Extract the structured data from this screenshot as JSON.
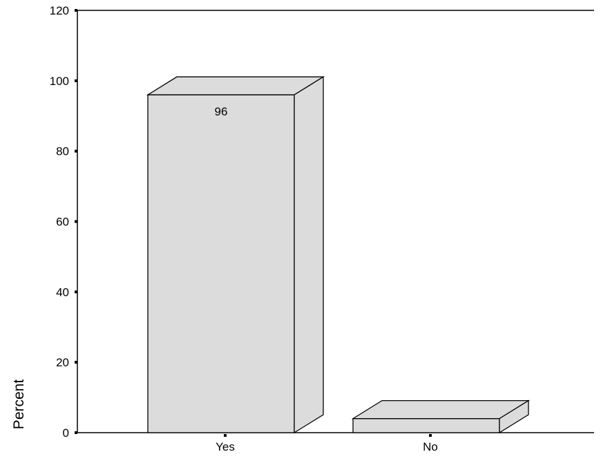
{
  "chart_data": {
    "type": "bar",
    "categories": [
      "Yes",
      "No"
    ],
    "values": [
      96,
      4
    ],
    "data_labels": [
      "96",
      ""
    ],
    "title": "",
    "xlabel": "",
    "ylabel": "Percent",
    "ylim": [
      0,
      120
    ],
    "yticks": [
      0,
      20,
      40,
      60,
      80,
      100,
      120
    ],
    "grid": false,
    "legend": "none",
    "style": "3d",
    "colors": {
      "bar_fill": "#dcdcdc",
      "bar_stroke": "#000000",
      "axis": "#000000",
      "background": "#ffffff"
    }
  }
}
